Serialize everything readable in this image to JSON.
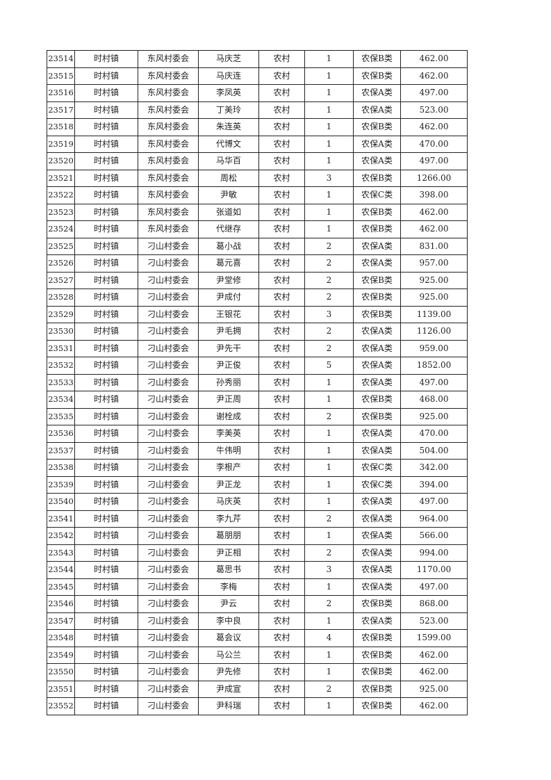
{
  "rows": [
    [
      "23514",
      "时村镇",
      "东风村委会",
      "马庆芝",
      "农村",
      "1",
      "农保B类",
      "462.00"
    ],
    [
      "23515",
      "时村镇",
      "东风村委会",
      "马庆连",
      "农村",
      "1",
      "农保B类",
      "462.00"
    ],
    [
      "23516",
      "时村镇",
      "东风村委会",
      "李凤英",
      "农村",
      "1",
      "农保A类",
      "497.00"
    ],
    [
      "23517",
      "时村镇",
      "东风村委会",
      "丁美玲",
      "农村",
      "1",
      "农保A类",
      "523.00"
    ],
    [
      "23518",
      "时村镇",
      "东风村委会",
      "朱连英",
      "农村",
      "1",
      "农保B类",
      "462.00"
    ],
    [
      "23519",
      "时村镇",
      "东风村委会",
      "代博文",
      "农村",
      "1",
      "农保A类",
      "470.00"
    ],
    [
      "23520",
      "时村镇",
      "东风村委会",
      "马华百",
      "农村",
      "1",
      "农保A类",
      "497.00"
    ],
    [
      "23521",
      "时村镇",
      "东风村委会",
      "周松",
      "农村",
      "3",
      "农保B类",
      "1266.00"
    ],
    [
      "23522",
      "时村镇",
      "东风村委会",
      "尹敏",
      "农村",
      "1",
      "农保C类",
      "398.00"
    ],
    [
      "23523",
      "时村镇",
      "东风村委会",
      "张道如",
      "农村",
      "1",
      "农保B类",
      "462.00"
    ],
    [
      "23524",
      "时村镇",
      "东风村委会",
      "代继存",
      "农村",
      "1",
      "农保B类",
      "462.00"
    ],
    [
      "23525",
      "时村镇",
      "刁山村委会",
      "葛小战",
      "农村",
      "2",
      "农保A类",
      "831.00"
    ],
    [
      "23526",
      "时村镇",
      "刁山村委会",
      "葛元喜",
      "农村",
      "2",
      "农保A类",
      "957.00"
    ],
    [
      "23527",
      "时村镇",
      "刁山村委会",
      "尹堂修",
      "农村",
      "2",
      "农保B类",
      "925.00"
    ],
    [
      "23528",
      "时村镇",
      "刁山村委会",
      "尹成付",
      "农村",
      "2",
      "农保B类",
      "925.00"
    ],
    [
      "23529",
      "时村镇",
      "刁山村委会",
      "王银花",
      "农村",
      "3",
      "农保B类",
      "1139.00"
    ],
    [
      "23530",
      "时村镇",
      "刁山村委会",
      "尹毛拥",
      "农村",
      "2",
      "农保A类",
      "1126.00"
    ],
    [
      "23531",
      "时村镇",
      "刁山村委会",
      "尹先干",
      "农村",
      "2",
      "农保A类",
      "959.00"
    ],
    [
      "23532",
      "时村镇",
      "刁山村委会",
      "尹正俊",
      "农村",
      "5",
      "农保A类",
      "1852.00"
    ],
    [
      "23533",
      "时村镇",
      "刁山村委会",
      "孙秀丽",
      "农村",
      "1",
      "农保A类",
      "497.00"
    ],
    [
      "23534",
      "时村镇",
      "刁山村委会",
      "尹正周",
      "农村",
      "1",
      "农保B类",
      "468.00"
    ],
    [
      "23535",
      "时村镇",
      "刁山村委会",
      "谢栓成",
      "农村",
      "2",
      "农保B类",
      "925.00"
    ],
    [
      "23536",
      "时村镇",
      "刁山村委会",
      "李美英",
      "农村",
      "1",
      "农保A类",
      "470.00"
    ],
    [
      "23537",
      "时村镇",
      "刁山村委会",
      "牛伟明",
      "农村",
      "1",
      "农保A类",
      "504.00"
    ],
    [
      "23538",
      "时村镇",
      "刁山村委会",
      "李根产",
      "农村",
      "1",
      "农保C类",
      "342.00"
    ],
    [
      "23539",
      "时村镇",
      "刁山村委会",
      "尹正龙",
      "农村",
      "1",
      "农保C类",
      "394.00"
    ],
    [
      "23540",
      "时村镇",
      "刁山村委会",
      "马庆英",
      "农村",
      "1",
      "农保A类",
      "497.00"
    ],
    [
      "23541",
      "时村镇",
      "刁山村委会",
      "李九芹",
      "农村",
      "2",
      "农保A类",
      "964.00"
    ],
    [
      "23542",
      "时村镇",
      "刁山村委会",
      "葛朋朋",
      "农村",
      "1",
      "农保A类",
      "566.00"
    ],
    [
      "23543",
      "时村镇",
      "刁山村委会",
      "尹正相",
      "农村",
      "2",
      "农保A类",
      "994.00"
    ],
    [
      "23544",
      "时村镇",
      "刁山村委会",
      "葛思书",
      "农村",
      "3",
      "农保A类",
      "1170.00"
    ],
    [
      "23545",
      "时村镇",
      "刁山村委会",
      "李梅",
      "农村",
      "1",
      "农保A类",
      "497.00"
    ],
    [
      "23546",
      "时村镇",
      "刁山村委会",
      "尹云",
      "农村",
      "2",
      "农保B类",
      "868.00"
    ],
    [
      "23547",
      "时村镇",
      "刁山村委会",
      "李中良",
      "农村",
      "1",
      "农保A类",
      "523.00"
    ],
    [
      "23548",
      "时村镇",
      "刁山村委会",
      "葛会议",
      "农村",
      "4",
      "农保B类",
      "1599.00"
    ],
    [
      "23549",
      "时村镇",
      "刁山村委会",
      "马公兰",
      "农村",
      "1",
      "农保B类",
      "462.00"
    ],
    [
      "23550",
      "时村镇",
      "刁山村委会",
      "尹先修",
      "农村",
      "1",
      "农保B类",
      "462.00"
    ],
    [
      "23551",
      "时村镇",
      "刁山村委会",
      "尹成宣",
      "农村",
      "2",
      "农保B类",
      "925.00"
    ],
    [
      "23552",
      "时村镇",
      "刁山村委会",
      "尹科瑞",
      "农村",
      "1",
      "农保B类",
      "462.00"
    ]
  ]
}
